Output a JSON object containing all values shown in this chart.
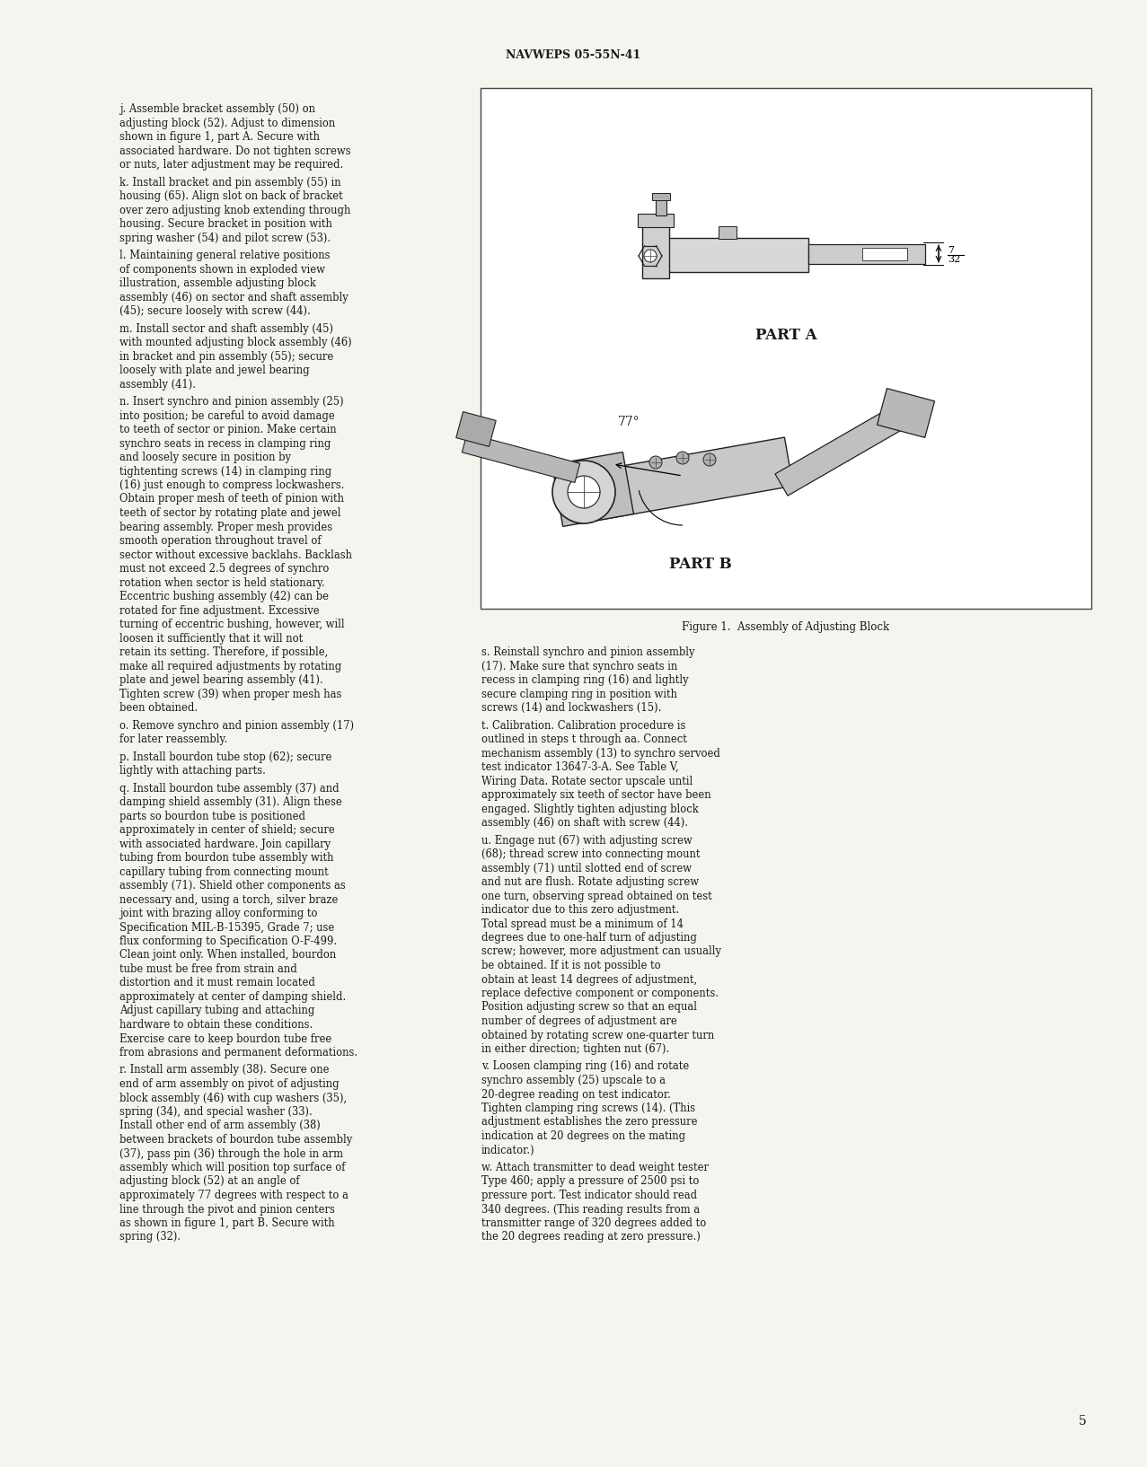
{
  "page_bg": "#f5f4ef",
  "header_text": "NAVWEPS 05-55N-41",
  "page_number": "5",
  "figure_caption": "Figure 1.  Assembly of Adjusting Block",
  "text_color": "#1a1a1a",
  "left_paragraphs": [
    "j.  Assemble bracket assembly (50) on adjusting block (52). Adjust to dimension shown in figure 1, part A. Secure with associated hardware. Do not tighten screws or nuts, later adjustment may be required.",
    "k.  Install bracket and pin assembly (55) in housing (65). Align slot on back of bracket over zero adjusting knob extending through housing. Secure bracket in position with spring washer (54) and pilot screw (53).",
    "l.  Maintaining general relative positions of components shown in exploded view illustration, assemble adjusting block assembly (46) on sector and shaft assembly (45); secure loosely with screw (44).",
    "m. Install sector and shaft assembly (45) with mounted adjusting block assembly (46) in bracket and pin assembly (55); secure loosely with plate and jewel bearing assembly (41).",
    "n.  Insert synchro and pinion assembly (25) into position; be careful to avoid damage to teeth of sector or pinion.  Make certain synchro seats in recess in clamping ring and loosely secure in position by tightenting screws (14) in clamping ring (16) just enough to compress lockwashers. Obtain proper mesh of teeth of pinion with teeth of sector by rotating plate and jewel bearing assembly. Proper mesh provides smooth operation throughout travel of sector without excessive backlahs. Backlash must not exceed 2.5 degrees of synchro rotation when sector is held stationary. Eccentric bushing assembly (42) can be rotated for fine adjustment. Excessive turning of eccentric bushing, however, will loosen it sufficiently that it will not retain its setting. Therefore, if possible, make all required adjustments by rotating plate and jewel bearing assembly (41). Tighten screw (39) when proper mesh has been obtained.",
    "o.  Remove synchro and pinion assembly (17) for later reassembly.",
    "p.  Install bourdon tube stop (62); secure lightly with attaching parts.",
    "q.  Install bourdon tube assembly (37) and damping shield assembly (31). Align these parts so bourdon tube is positioned approximately in center of shield; secure with associated hardware. Join capillary tubing from bourdon tube assembly with capillary tubing from connecting mount assembly (71). Shield other components as necessary and, using a torch, silver braze joint with brazing alloy conforming to Specification MIL-B-15395, Grade 7; use flux conforming to Specification O-F-499. Clean joint only. When installed, bourdon tube must be free from strain and distortion and it must remain located approximately at center of damping shield. Adjust capillary tubing and attaching hardware to obtain these conditions. Exercise care to keep bourdon tube free from abrasions and permanent deformations.",
    "r.  Install arm assembly (38). Secure one end of arm assembly on pivot of adjusting block assembly (46) with cup washers (35), spring (34), and special washer (33). Install other end of arm assembly (38) between brackets of bourdon tube assembly (37), pass pin (36) through the hole in arm assembly which will position top surface of adjusting block (52) at an angle of approximately 77 degrees with respect to a line through the pivot and pinion centers as shown in figure 1, part B. Secure with spring (32)."
  ],
  "right_paragraphs": [
    "s.  Reinstall synchro and pinion assembly (17). Make sure that synchro seats in recess in clamping ring (16) and lightly secure clamping ring in position with screws (14) and lockwashers (15).",
    "t.  Calibration. Calibration procedure is outlined in steps t through aa. Connect mechanism assembly (13) to synchro servoed test indicator 13647-3-A. See Table V, Wiring Data. Rotate sector upscale until approximately six teeth of sector have been engaged. Slightly tighten adjusting block assembly (46) on shaft with screw (44).",
    "u.  Engage nut (67) with adjusting screw (68); thread screw into connecting mount assembly (71) until slotted end of screw and nut are flush. Rotate adjusting screw one turn, observing spread obtained on test indicator due to this zero adjustment. Total spread must be a minimum of 14 degrees due to one-half turn of adjusting screw; however, more adjustment can usually be obtained. If it is not possible to obtain at least 14 degrees of adjustment, replace defective component or components. Position adjusting screw so that an equal number of degrees of adjustment are obtained by rotating screw one-quarter turn in either direction; tighten nut (67).",
    "v.  Loosen clamping ring (16) and rotate synchro assembly (25) upscale to a 20-degree reading on test indicator. Tighten clamping ring screws (14). (This adjustment establishes the zero pressure indication at 20 degrees on the mating indicator.)",
    "w.  Attach transmitter to dead weight tester Type 460; apply a pressure of 2500 psi to pressure port. Test indicator should read 340 degrees. (This reading results from a transmitter range of 320 degrees added to the 20 degrees reading at zero pressure.)"
  ]
}
